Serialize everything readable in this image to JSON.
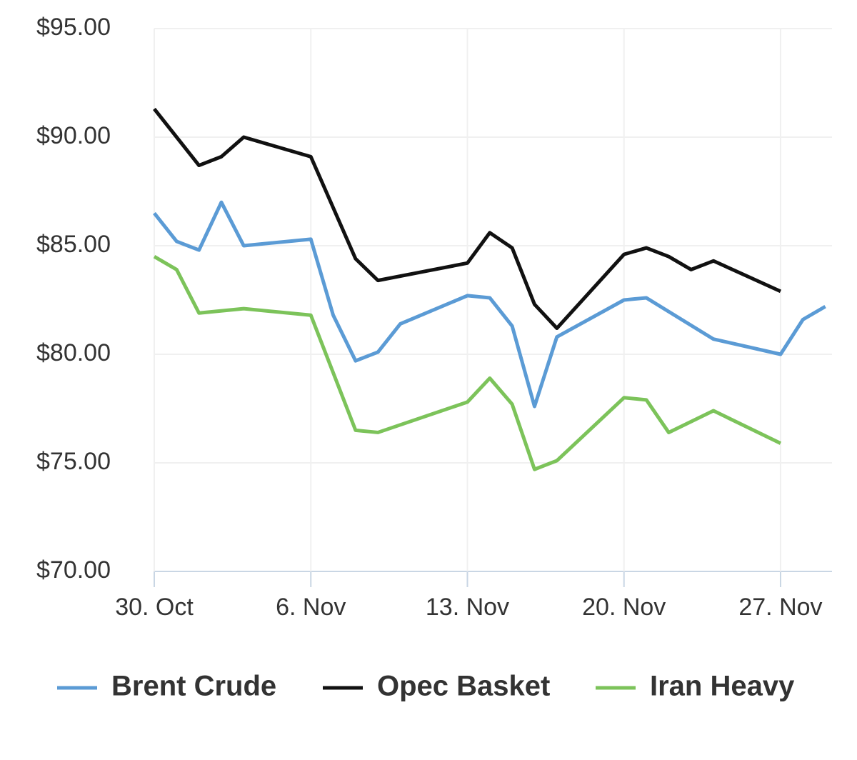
{
  "chart_data": {
    "type": "line",
    "xlim": [
      0,
      30.3
    ],
    "ylim": [
      70,
      95
    ],
    "xticks": [
      {
        "value": 0,
        "label": "30. Oct"
      },
      {
        "value": 7,
        "label": "6. Nov"
      },
      {
        "value": 14,
        "label": "13. Nov"
      },
      {
        "value": 21,
        "label": "20. Nov"
      },
      {
        "value": 28,
        "label": "27. Nov"
      }
    ],
    "yticks": [
      {
        "value": 70,
        "label": "$70.00"
      },
      {
        "value": 75,
        "label": "$75.00"
      },
      {
        "value": 80,
        "label": "$80.00"
      },
      {
        "value": 85,
        "label": "$85.00"
      },
      {
        "value": 90,
        "label": "$90.00"
      },
      {
        "value": 95,
        "label": "$95.00"
      }
    ],
    "grid": true,
    "legend": "bottom",
    "series": [
      {
        "name": "Brent Crude",
        "color": "#5b9bd5",
        "x": [
          0,
          1,
          2,
          3,
          4,
          7,
          8,
          9,
          10,
          11,
          14,
          15,
          16,
          17,
          18,
          21,
          22,
          25,
          28,
          29,
          30
        ],
        "values": [
          86.5,
          85.2,
          84.8,
          87.0,
          85.0,
          85.3,
          81.8,
          79.7,
          80.1,
          81.4,
          82.7,
          82.6,
          81.3,
          77.6,
          80.8,
          82.5,
          82.6,
          80.7,
          80.0,
          81.6,
          82.2
        ]
      },
      {
        "name": "Opec Basket",
        "color": "#111111",
        "x": [
          0,
          2,
          3,
          4,
          7,
          9,
          10,
          14,
          15,
          16,
          17,
          18,
          21,
          22,
          23,
          24,
          25,
          28
        ],
        "values": [
          91.3,
          88.7,
          89.1,
          90.0,
          89.1,
          84.4,
          83.4,
          84.2,
          85.6,
          84.9,
          82.3,
          81.2,
          84.6,
          84.9,
          84.5,
          83.9,
          84.3,
          82.9
        ]
      },
      {
        "name": "Iran Heavy",
        "color": "#7cc35a",
        "x": [
          0,
          1,
          2,
          4,
          7,
          9,
          10,
          14,
          15,
          16,
          17,
          18,
          21,
          22,
          23,
          25,
          28
        ],
        "values": [
          84.5,
          83.9,
          81.9,
          82.1,
          81.8,
          76.5,
          76.4,
          77.8,
          78.9,
          77.7,
          74.7,
          75.1,
          78.0,
          77.9,
          76.4,
          77.4,
          75.9
        ]
      }
    ]
  }
}
